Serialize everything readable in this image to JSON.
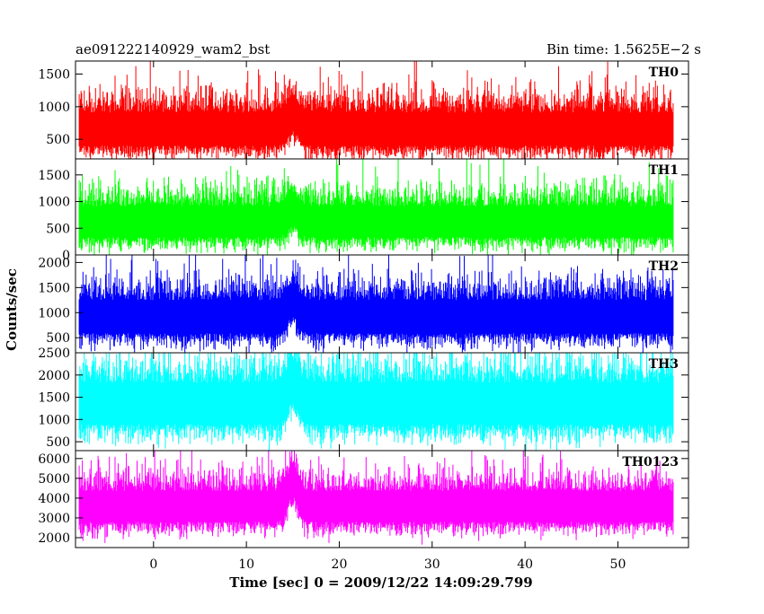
{
  "header": {
    "left_title": "ae091222140929_wam2_bst",
    "right_title": "Bin time: 1.5625E−2 s"
  },
  "axes": {
    "ylabel": "Counts/sec",
    "xlabel": "Time [sec] 0 = 2009/12/22 14:09:29.799"
  },
  "chart_data": {
    "type": "line",
    "title": "ae091222140929_wam2_bst",
    "subtitle": "Bin time: 1.5625E−2 s",
    "xlabel": "Time [sec] 0 = 2009/12/22 14:09:29.799",
    "ylabel": "Counts/sec",
    "xlim": [
      -8.4,
      57.6
    ],
    "x_ticks": [
      0,
      10,
      20,
      30,
      40,
      50
    ],
    "x_range_data": [
      -8,
      56
    ],
    "bin_time_s": 0.015625,
    "legend_position": "top-right per panel",
    "grid": false,
    "panels": [
      {
        "name": "TH0",
        "color": "#ff0000",
        "ylim": [
          200,
          1700
        ],
        "yticks": [
          500,
          1000,
          1500
        ],
        "baseline_mean": 680,
        "baseline_spread": 230,
        "peak_max": 1700,
        "burst_peak_time": 15
      },
      {
        "name": "TH1",
        "color": "#00ff00",
        "ylim": [
          0,
          1800
        ],
        "yticks": [
          0,
          500,
          1000,
          1500
        ],
        "baseline_mean": 650,
        "baseline_spread": 260,
        "peak_max": 1800,
        "burst_peak_time": 15
      },
      {
        "name": "TH2",
        "color": "#0000ff",
        "ylim": [
          200,
          2150
        ],
        "yticks": [
          500,
          1000,
          1500,
          2000
        ],
        "baseline_mean": 950,
        "baseline_spread": 300,
        "peak_max": 2150,
        "burst_peak_time": 15
      },
      {
        "name": "TH3",
        "color": "#00ffff",
        "ylim": [
          300,
          2500
        ],
        "yticks": [
          500,
          1000,
          1500,
          2000,
          2500
        ],
        "baseline_mean": 1400,
        "baseline_spread": 420,
        "peak_max": 2500,
        "burst_peak_time": 15
      },
      {
        "name": "TH0123",
        "color": "#ff00ff",
        "ylim": [
          1500,
          6400
        ],
        "yticks": [
          2000,
          3000,
          4000,
          5000,
          6000
        ],
        "baseline_mean": 3650,
        "baseline_spread": 700,
        "peak_max": 6400,
        "burst_peak_time": 15
      }
    ]
  }
}
